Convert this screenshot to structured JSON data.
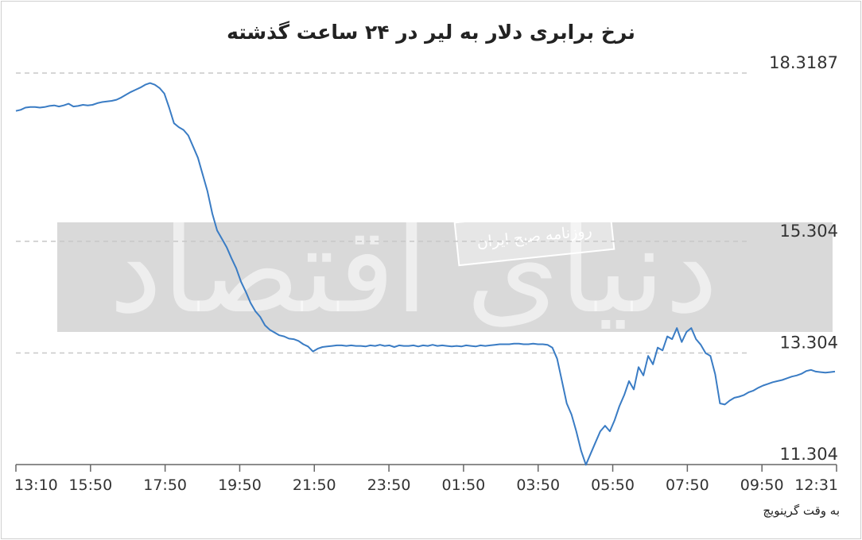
{
  "chart_data": {
    "type": "line",
    "title": "نرخ برابری دلار به لیر در ۲۴ ساعت گذشته",
    "xlabel_note": "به وقت گرینویچ",
    "x_ticks": [
      "13:10",
      "15:50",
      "17:50",
      "19:50",
      "21:50",
      "23:50",
      "01:50",
      "03:50",
      "05:50",
      "07:50",
      "09:50",
      "12:31"
    ],
    "y_ticks": [
      {
        "label": "18.3187",
        "value": 18.3187
      },
      {
        "label": "15.304",
        "value": 15.304
      },
      {
        "label": "13.304",
        "value": 13.304
      },
      {
        "label": "11.304",
        "value": 11.304
      }
    ],
    "ylim": [
      11.304,
      18.3187
    ],
    "grid": true,
    "line_color": "#3a7cc4",
    "series": [
      {
        "values": [
          17.64,
          17.66,
          17.7,
          17.71,
          17.71,
          17.7,
          17.71,
          17.73,
          17.74,
          17.72,
          17.74,
          17.77,
          17.72,
          17.73,
          17.75,
          17.74,
          17.75,
          17.78,
          17.8,
          17.81,
          17.82,
          17.84,
          17.88,
          17.93,
          17.98,
          18.02,
          18.06,
          18.11,
          18.14,
          18.11,
          18.05,
          17.95,
          17.7,
          17.42,
          17.35,
          17.3,
          17.2,
          17.0,
          16.8,
          16.5,
          16.2,
          15.8,
          15.5,
          15.35,
          15.2,
          15.0,
          14.82,
          14.58,
          14.4,
          14.2,
          14.05,
          13.95,
          13.8,
          13.72,
          13.67,
          13.62,
          13.6,
          13.56,
          13.55,
          13.52,
          13.46,
          13.42,
          13.33,
          13.38,
          13.41,
          13.42,
          13.43,
          13.44,
          13.44,
          13.43,
          13.44,
          13.43,
          13.43,
          13.42,
          13.44,
          13.43,
          13.45,
          13.43,
          13.44,
          13.41,
          13.44,
          13.43,
          13.43,
          13.44,
          13.42,
          13.44,
          13.43,
          13.45,
          13.43,
          13.44,
          13.43,
          13.42,
          13.43,
          13.42,
          13.44,
          13.43,
          13.42,
          13.44,
          13.43,
          13.44,
          13.45,
          13.46,
          13.46,
          13.46,
          13.47,
          13.47,
          13.46,
          13.46,
          13.47,
          13.46,
          13.46,
          13.45,
          13.4,
          13.2,
          12.8,
          12.4,
          12.2,
          11.9,
          11.55,
          11.3,
          11.5,
          11.7,
          11.9,
          12.0,
          11.9,
          12.1,
          12.35,
          12.55,
          12.8,
          12.65,
          13.05,
          12.9,
          13.25,
          13.1,
          13.4,
          13.35,
          13.6,
          13.55,
          13.75,
          13.5,
          13.68,
          13.75,
          13.55,
          13.45,
          13.3,
          13.25,
          12.92,
          12.4,
          12.38,
          12.45,
          12.5,
          12.52,
          12.55,
          12.6,
          12.63,
          12.68,
          12.72,
          12.75,
          12.78,
          12.8,
          12.82,
          12.85,
          12.88,
          12.9,
          12.93,
          12.98,
          13.0,
          12.97,
          12.96,
          12.95,
          12.96,
          12.97
        ]
      }
    ]
  },
  "watermark": {
    "brand": "دنیای اقتصاد",
    "source": "روزنامه صبح ایران"
  }
}
